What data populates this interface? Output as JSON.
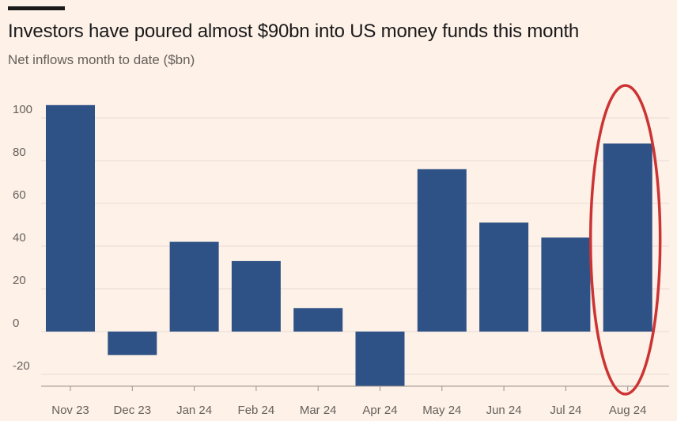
{
  "chart_data": {
    "type": "bar",
    "title": "Investors have poured almost $90bn into US money funds this month",
    "subtitle": "Net inflows month to date ($bn)",
    "xlabel": "",
    "ylabel": "",
    "categories": [
      "Nov 23",
      "Dec 23",
      "Jan 24",
      "Feb 24",
      "Mar 24",
      "Apr 24",
      "May 24",
      "Jun 24",
      "Jul 24",
      "Aug 24"
    ],
    "values": [
      106,
      -11,
      42,
      33,
      11,
      -26,
      76,
      51,
      44,
      88
    ],
    "ylim": [
      -26,
      110
    ],
    "yticks": [
      100,
      80,
      60,
      40,
      20,
      0,
      -20
    ],
    "ytick_labels": [
      "100",
      "80",
      "60",
      "40",
      "20",
      "0",
      "-20"
    ],
    "grid": true,
    "annotations": [
      {
        "type": "ellipse",
        "target_category": "Aug 24",
        "description": "red circle highlight"
      }
    ],
    "colors": {
      "bar": "#2e5286",
      "highlight": "#cc3333",
      "grid": "#e8dcd3",
      "background": "#fdf1e8"
    }
  }
}
